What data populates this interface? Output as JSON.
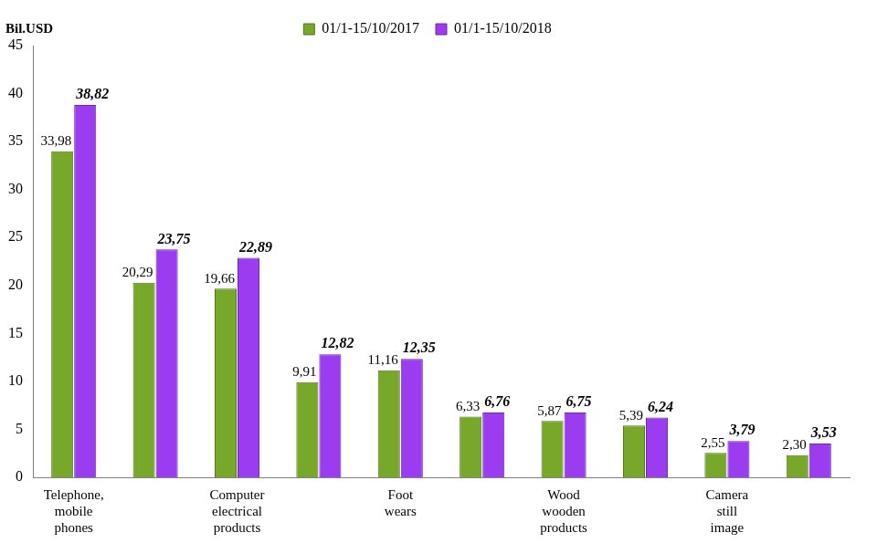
{
  "chart_data": {
    "type": "bar",
    "y_label": "Bil.USD",
    "categories": [
      "Telephone, mobile phones",
      null,
      "Computer electrical products",
      null,
      "Foot wears",
      null,
      "Wood wooden products",
      null,
      "Camera still image",
      null
    ],
    "series": [
      {
        "name": "01/1-15/10/2017",
        "color": "#77a82a",
        "values": [
          33.98,
          20.29,
          19.66,
          9.91,
          11.16,
          6.33,
          5.87,
          5.39,
          2.55,
          2.3
        ],
        "value_labels": [
          "33,98",
          "20,29",
          "19,66",
          "9,91",
          "11,16",
          "6,33",
          "5,87",
          "5,39",
          "2,55",
          "2,30"
        ]
      },
      {
        "name": "01/1-15/10/2018",
        "color": "#9b3cf0",
        "values": [
          38.82,
          23.75,
          22.89,
          12.82,
          12.35,
          6.76,
          6.75,
          6.24,
          3.79,
          3.53
        ],
        "value_labels": [
          "38,82",
          "23,75",
          "22,89",
          "12,82",
          "12,35",
          "6,76",
          "6,75",
          "6,24",
          "3,79",
          "3,53"
        ]
      }
    ],
    "ylim": [
      0,
      45
    ],
    "yticks": [
      0,
      5,
      10,
      15,
      20,
      25,
      30,
      35,
      40,
      45
    ],
    "grid": false,
    "legend": "top",
    "data_labels": true
  }
}
